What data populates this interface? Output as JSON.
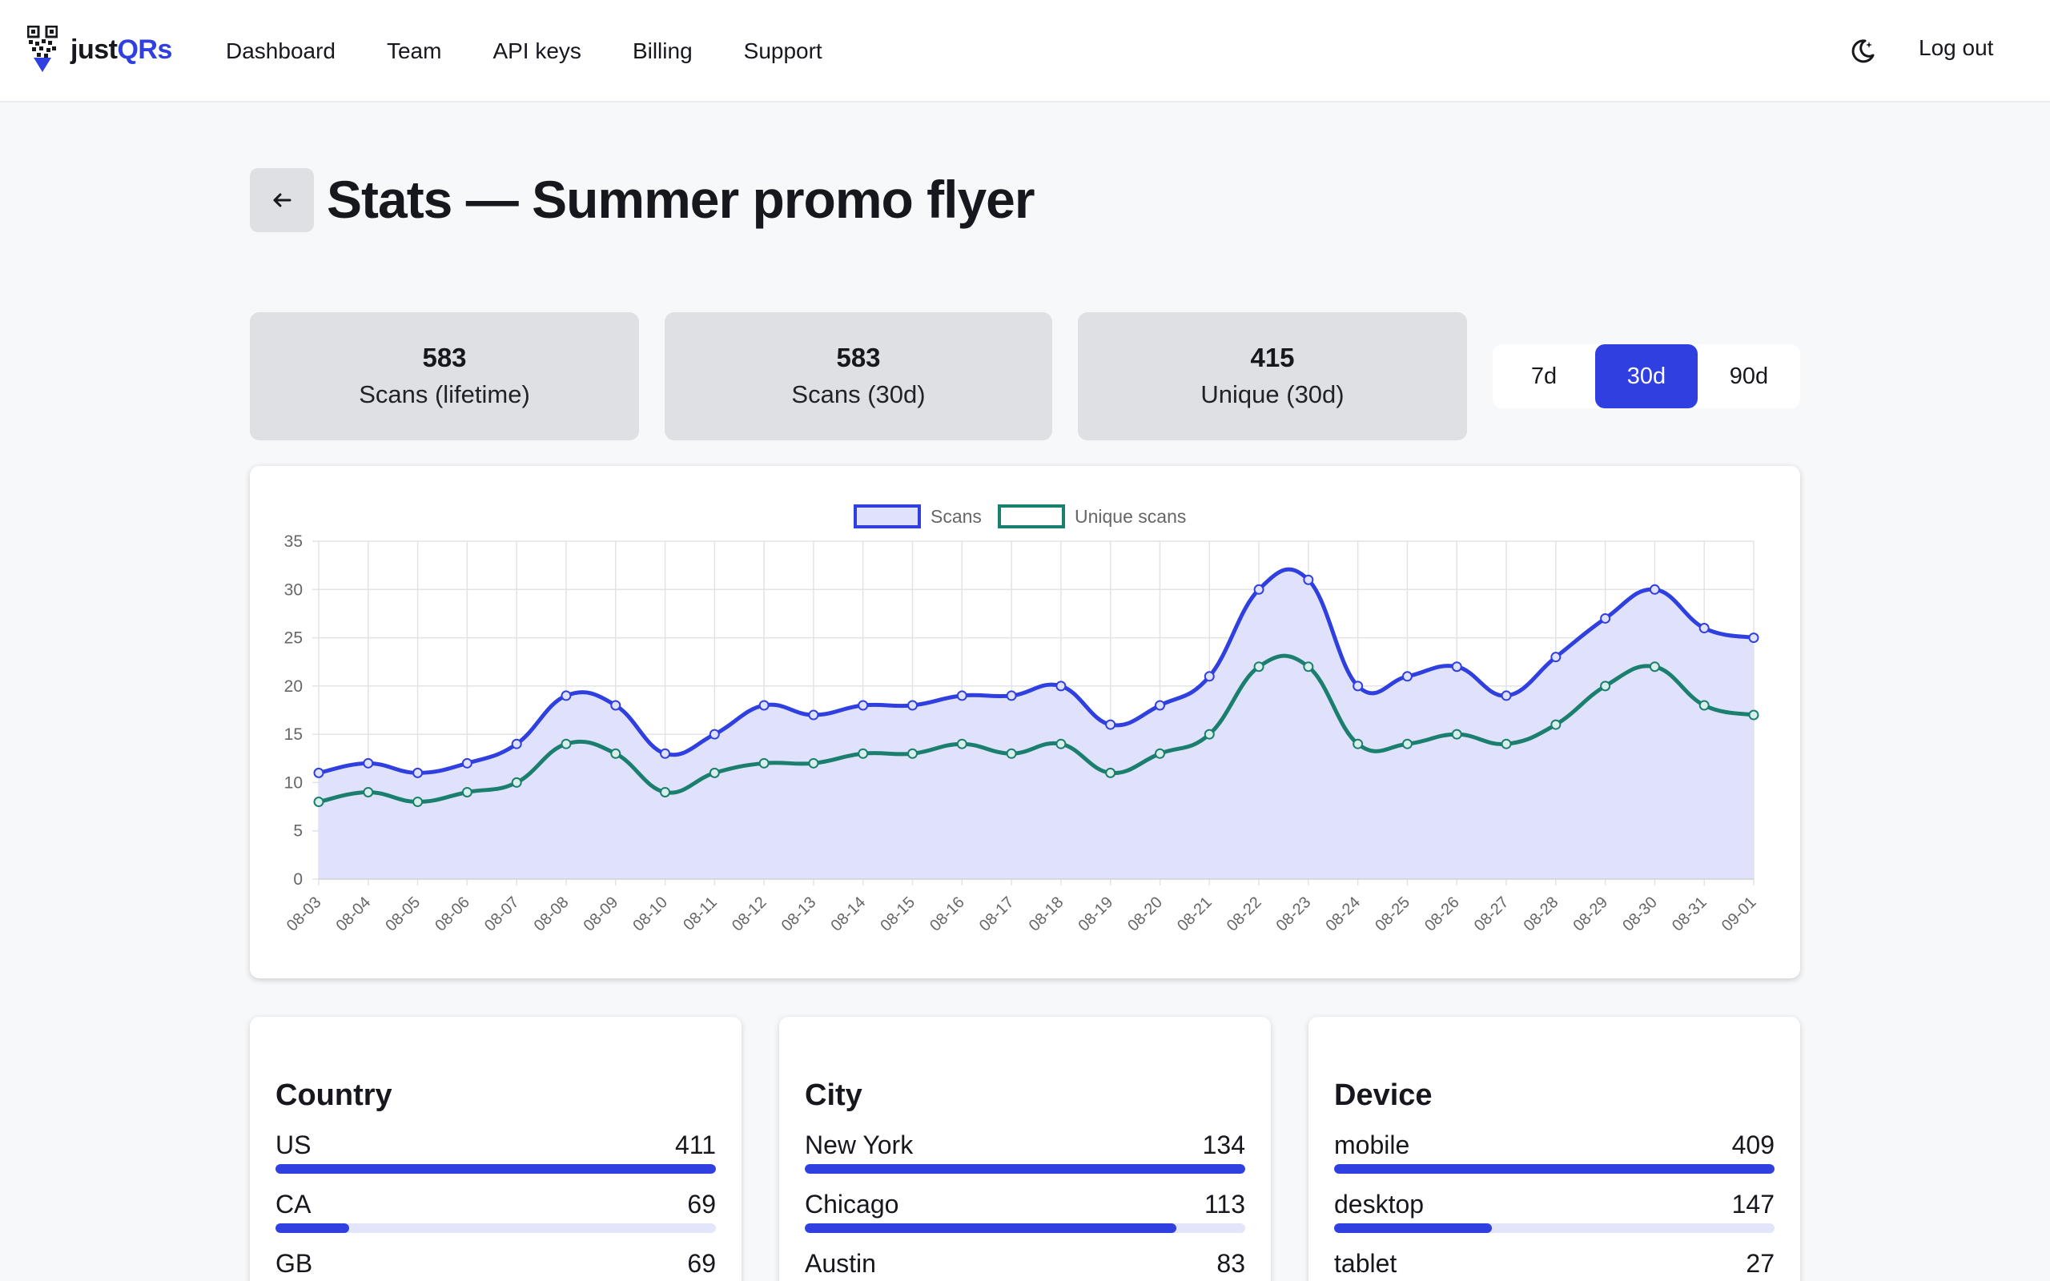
{
  "app": {
    "name_part1": "just",
    "name_part2": "QRs"
  },
  "nav": [
    "Dashboard",
    "Team",
    "API keys",
    "Billing",
    "Support"
  ],
  "header": {
    "theme_icon": "moon-icon",
    "logout_label": "Log out"
  },
  "page": {
    "title": "Stats — Summer promo flyer",
    "back_icon": "arrow-left-icon"
  },
  "stats": [
    {
      "value": "583",
      "label": "Scans (lifetime)"
    },
    {
      "value": "583",
      "label": "Scans (30d)"
    },
    {
      "value": "415",
      "label": "Unique (30d)"
    }
  ],
  "range": {
    "options": [
      "7d",
      "30d",
      "90d"
    ],
    "selected": "30d"
  },
  "chart_data": {
    "type": "line",
    "x": [
      "08-03",
      "08-04",
      "08-05",
      "08-06",
      "08-07",
      "08-08",
      "08-09",
      "08-10",
      "08-11",
      "08-12",
      "08-13",
      "08-14",
      "08-15",
      "08-16",
      "08-17",
      "08-18",
      "08-19",
      "08-20",
      "08-21",
      "08-22",
      "08-23",
      "08-24",
      "08-25",
      "08-26",
      "08-27",
      "08-28",
      "08-29",
      "08-30",
      "08-31",
      "09-01"
    ],
    "series": [
      {
        "name": "Scans",
        "values": [
          11,
          12,
          11,
          12,
          14,
          19,
          18,
          13,
          15,
          18,
          17,
          18,
          18,
          19,
          19,
          20,
          16,
          18,
          21,
          30,
          31,
          20,
          21,
          22,
          19,
          23,
          27,
          30,
          26,
          25
        ],
        "color": "#2f3fe0",
        "fill": "#e0e2fb"
      },
      {
        "name": "Unique scans",
        "values": [
          8,
          9,
          8,
          9,
          10,
          14,
          13,
          9,
          11,
          12,
          12,
          13,
          13,
          14,
          13,
          14,
          11,
          13,
          15,
          22,
          22,
          14,
          14,
          15,
          14,
          16,
          20,
          22,
          18,
          17
        ],
        "color": "#1a7f6f"
      }
    ],
    "ylim": [
      0,
      35
    ],
    "yticks": [
      0,
      5,
      10,
      15,
      20,
      25,
      30,
      35
    ],
    "grid": true,
    "legend": "top-center"
  },
  "breakdowns": {
    "country": {
      "title": "Country",
      "items": [
        {
          "label": "US",
          "value": 411,
          "fraction": 1.0
        },
        {
          "label": "CA",
          "value": 69,
          "fraction": 0.168
        },
        {
          "label": "GB",
          "value": 69,
          "fraction": 0.168
        }
      ]
    },
    "city": {
      "title": "City",
      "items": [
        {
          "label": "New York",
          "value": 134,
          "fraction": 1.0
        },
        {
          "label": "Chicago",
          "value": 113,
          "fraction": 0.843
        },
        {
          "label": "Austin",
          "value": 83,
          "fraction": 0.619
        }
      ]
    },
    "device": {
      "title": "Device",
      "items": [
        {
          "label": "mobile",
          "value": 409,
          "fraction": 1.0
        },
        {
          "label": "desktop",
          "value": 147,
          "fraction": 0.359
        },
        {
          "label": "tablet",
          "value": 27,
          "fraction": 0.066
        }
      ]
    }
  }
}
